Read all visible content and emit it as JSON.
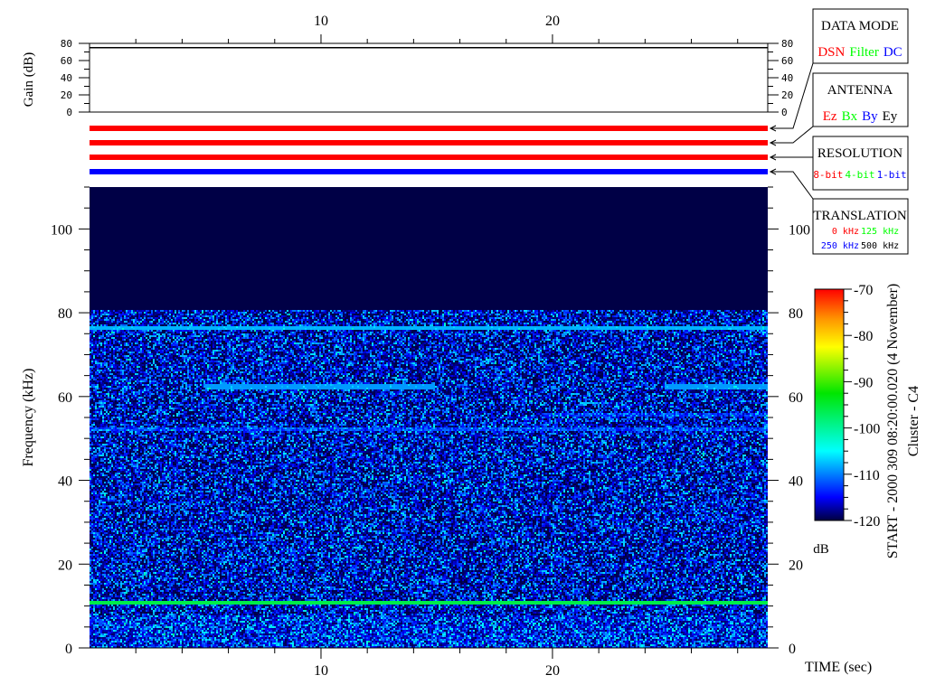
{
  "chart_data": [
    {
      "type": "line",
      "panel": "gain",
      "ylabel": "Gain (dB)",
      "ylim": [
        0,
        80
      ],
      "yticks": [
        "0",
        "20",
        "40",
        "60",
        "80"
      ],
      "xlim": [
        0,
        29.3
      ],
      "series": [
        {
          "x": [
            0,
            29.3
          ],
          "y": [
            75,
            75
          ]
        }
      ]
    },
    {
      "type": "table",
      "panel": "mode-bars",
      "bars": [
        {
          "label": "DATA MODE",
          "color": "#ff0000"
        },
        {
          "label": "ANTENNA",
          "color": "#ff0000"
        },
        {
          "label": "RESOLUTION",
          "color": "#ff0000"
        },
        {
          "label": "TRANSLATION",
          "color": "#0000ff"
        }
      ]
    },
    {
      "type": "heatmap",
      "panel": "spectrogram",
      "xlabel": "TIME (sec)",
      "ylabel": "Frequency (kHz)",
      "xlim": [
        0,
        29.3
      ],
      "ylim": [
        0,
        110
      ],
      "xticks": [
        "10",
        "20"
      ],
      "yticks": [
        "0",
        "20",
        "40",
        "60",
        "80",
        "100"
      ],
      "data_upper_limit_khz": 81,
      "background_db": -116,
      "lines": [
        {
          "freq_khz": 76.5,
          "t_start": 0,
          "t_end": 29.3,
          "db": -108
        },
        {
          "freq_khz": 11,
          "t_start": 0,
          "t_end": 29.3,
          "db": -96
        },
        {
          "freq_khz": 62.5,
          "t_start": 5.0,
          "t_end": 14.9,
          "db": -109
        },
        {
          "freq_khz": 62.5,
          "t_start": 24.8,
          "t_end": 29.3,
          "db": -109
        },
        {
          "freq_khz": 52.5,
          "t_start": 0,
          "t_end": 29.3,
          "db": -113
        },
        {
          "freq_khz": 56,
          "t_start": 19.5,
          "t_end": 29.3,
          "db": -114
        }
      ],
      "colorbar": {
        "label": "dB",
        "range": [
          -120,
          -70
        ],
        "ticks": [
          "-70",
          "-80",
          "-90",
          "-100",
          "-110",
          "-120"
        ]
      }
    }
  ],
  "title_side": {
    "start": "START - 2000 309 08:20:00.020 (4 November)",
    "spacecraft": "Cluster - C4"
  },
  "legend": {
    "data_mode": {
      "title": "DATA MODE",
      "items": [
        {
          "text": "DSN",
          "color": "#ff0000"
        },
        {
          "text": "Filter",
          "color": "#00ff00"
        },
        {
          "text": "DC",
          "color": "#0000ff"
        }
      ]
    },
    "antenna": {
      "title": "ANTENNA",
      "items": [
        {
          "text": "Ez",
          "color": "#ff0000"
        },
        {
          "text": "Bx",
          "color": "#00ff00"
        },
        {
          "text": "By",
          "color": "#0000ff"
        },
        {
          "text": "Ey",
          "color": "#000000"
        }
      ]
    },
    "resolution": {
      "title": "RESOLUTION",
      "items": [
        {
          "text": "8-bit",
          "color": "#ff0000"
        },
        {
          "text": "4-bit",
          "color": "#00ff00"
        },
        {
          "text": "1-bit",
          "color": "#0000ff"
        }
      ]
    },
    "translation": {
      "title": "TRANSLATION",
      "items": [
        {
          "text": "0 kHz",
          "color": "#ff0000"
        },
        {
          "text": "125 kHz",
          "color": "#00ff00"
        },
        {
          "text": "250 kHz",
          "color": "#0000ff"
        },
        {
          "text": "500 kHz",
          "color": "#000000"
        }
      ]
    }
  }
}
